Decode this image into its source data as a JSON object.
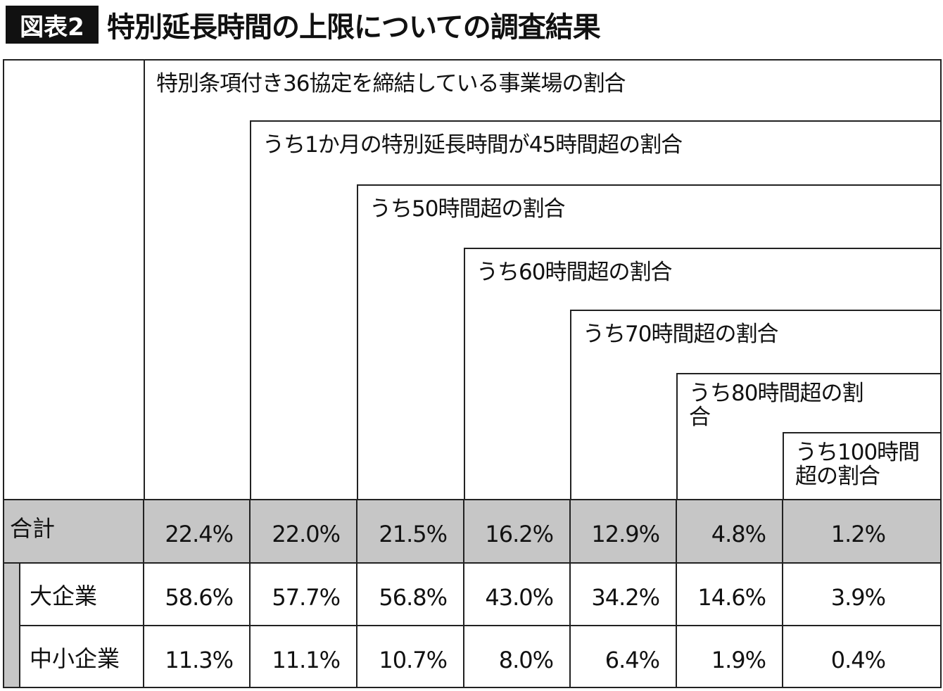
{
  "header": {
    "badge": "図表2",
    "title": "特別延長時間の上限についての調査結果"
  },
  "table": {
    "column_headers": [
      "特別条項付き36協定を締結している事業場の割合",
      "うち1か月の特別延長時間が45時間超の割合",
      "うち50時間超の割合",
      "うち60時間超の割合",
      "うち70時間超の割合",
      "うち80時間超の割合",
      "うち100時間超の割合"
    ],
    "rows": [
      {
        "label": "合計",
        "cells": [
          "22.4%",
          "22.0%",
          "21.5%",
          "16.2%",
          "12.9%",
          "4.8%",
          "1.2%"
        ]
      },
      {
        "label": "大企業",
        "cells": [
          "58.6%",
          "57.7%",
          "56.8%",
          "43.0%",
          "34.2%",
          "14.6%",
          "3.9%"
        ]
      },
      {
        "label": "中小企業",
        "cells": [
          "11.3%",
          "11.1%",
          "10.7%",
          "8.0%",
          "6.4%",
          "1.9%",
          "0.4%"
        ]
      }
    ]
  }
}
